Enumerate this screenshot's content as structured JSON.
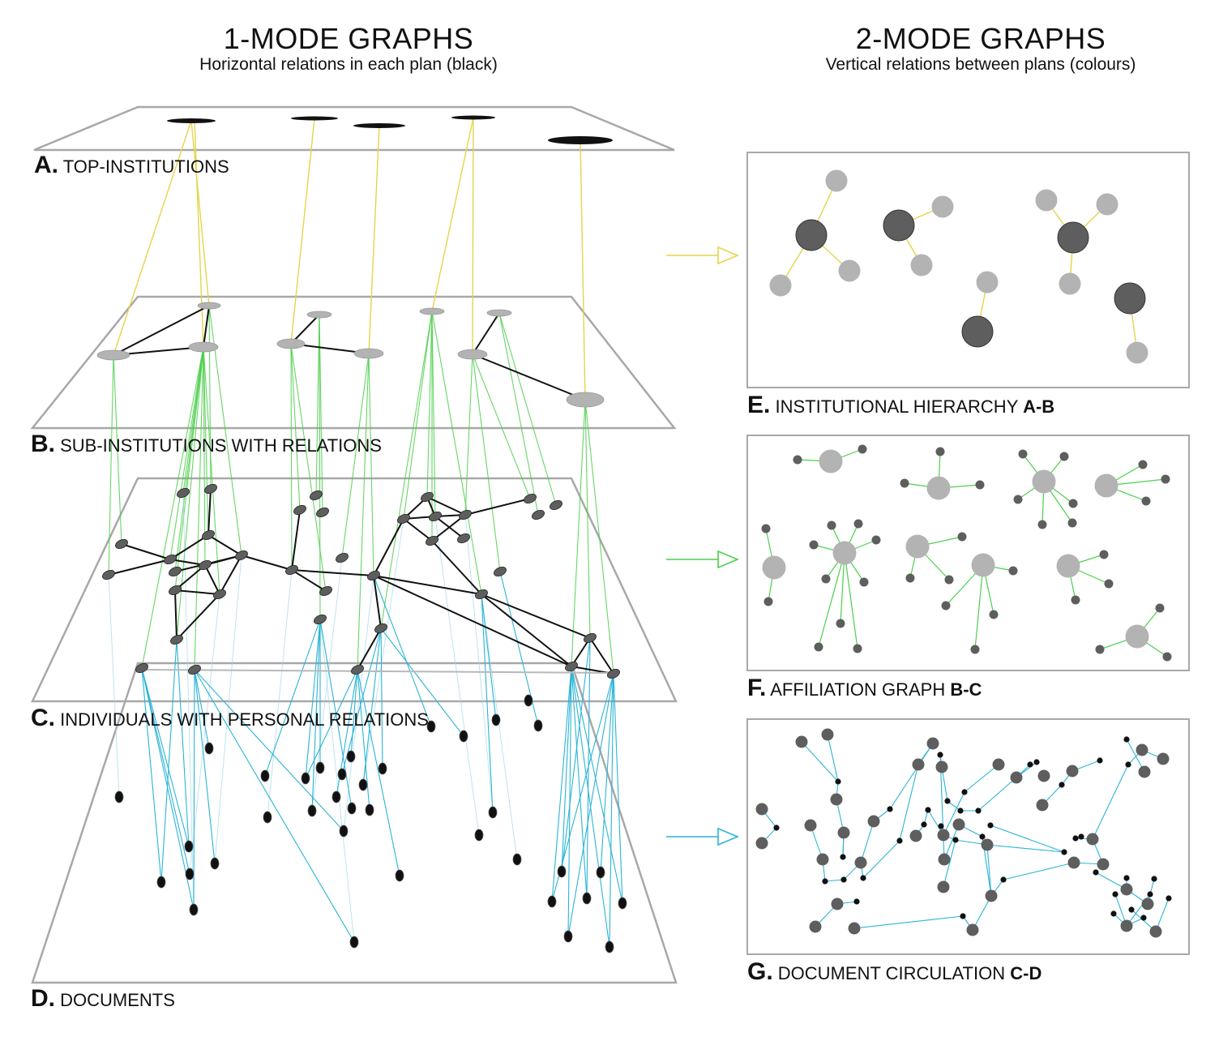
{
  "headers": {
    "left": {
      "title": "1-MODE GRAPHS",
      "subtitle": "Horizontal relations in each plan (black)"
    },
    "right": {
      "title": "2-MODE GRAPHS",
      "subtitle": "Vertical relations between plans (colours)"
    }
  },
  "planes": [
    {
      "letter": "A.",
      "text": "TOP-INSTITUTIONS",
      "code": ""
    },
    {
      "letter": "B.",
      "text": "SUB-INSTITUTIONS WITH RELATIONS",
      "code": ""
    },
    {
      "letter": "C.",
      "text": "INDIVIDUALS WITH PERSONAL RELATIONS",
      "code": ""
    },
    {
      "letter": "D.",
      "text": "DOCUMENTS",
      "code": ""
    }
  ],
  "panels": [
    {
      "letter": "E.",
      "text": "INSTITUTIONAL HIERARCHY",
      "code": "A-B"
    },
    {
      "letter": "F.",
      "text": "AFFILIATION GRAPH",
      "code": "B-C"
    },
    {
      "letter": "G.",
      "text": "DOCUMENT CIRCULATION",
      "code": "C-D"
    }
  ],
  "colors": {
    "institutional": "#e6d44a",
    "affiliation": "#4ccf4c",
    "circulation": "#2bb4d6",
    "relation": "#111111",
    "plane_border": "#a8a8a8",
    "node_light": "#b3b3b3",
    "node_dark": "#5e5e5e",
    "node_black": "#111111"
  }
}
